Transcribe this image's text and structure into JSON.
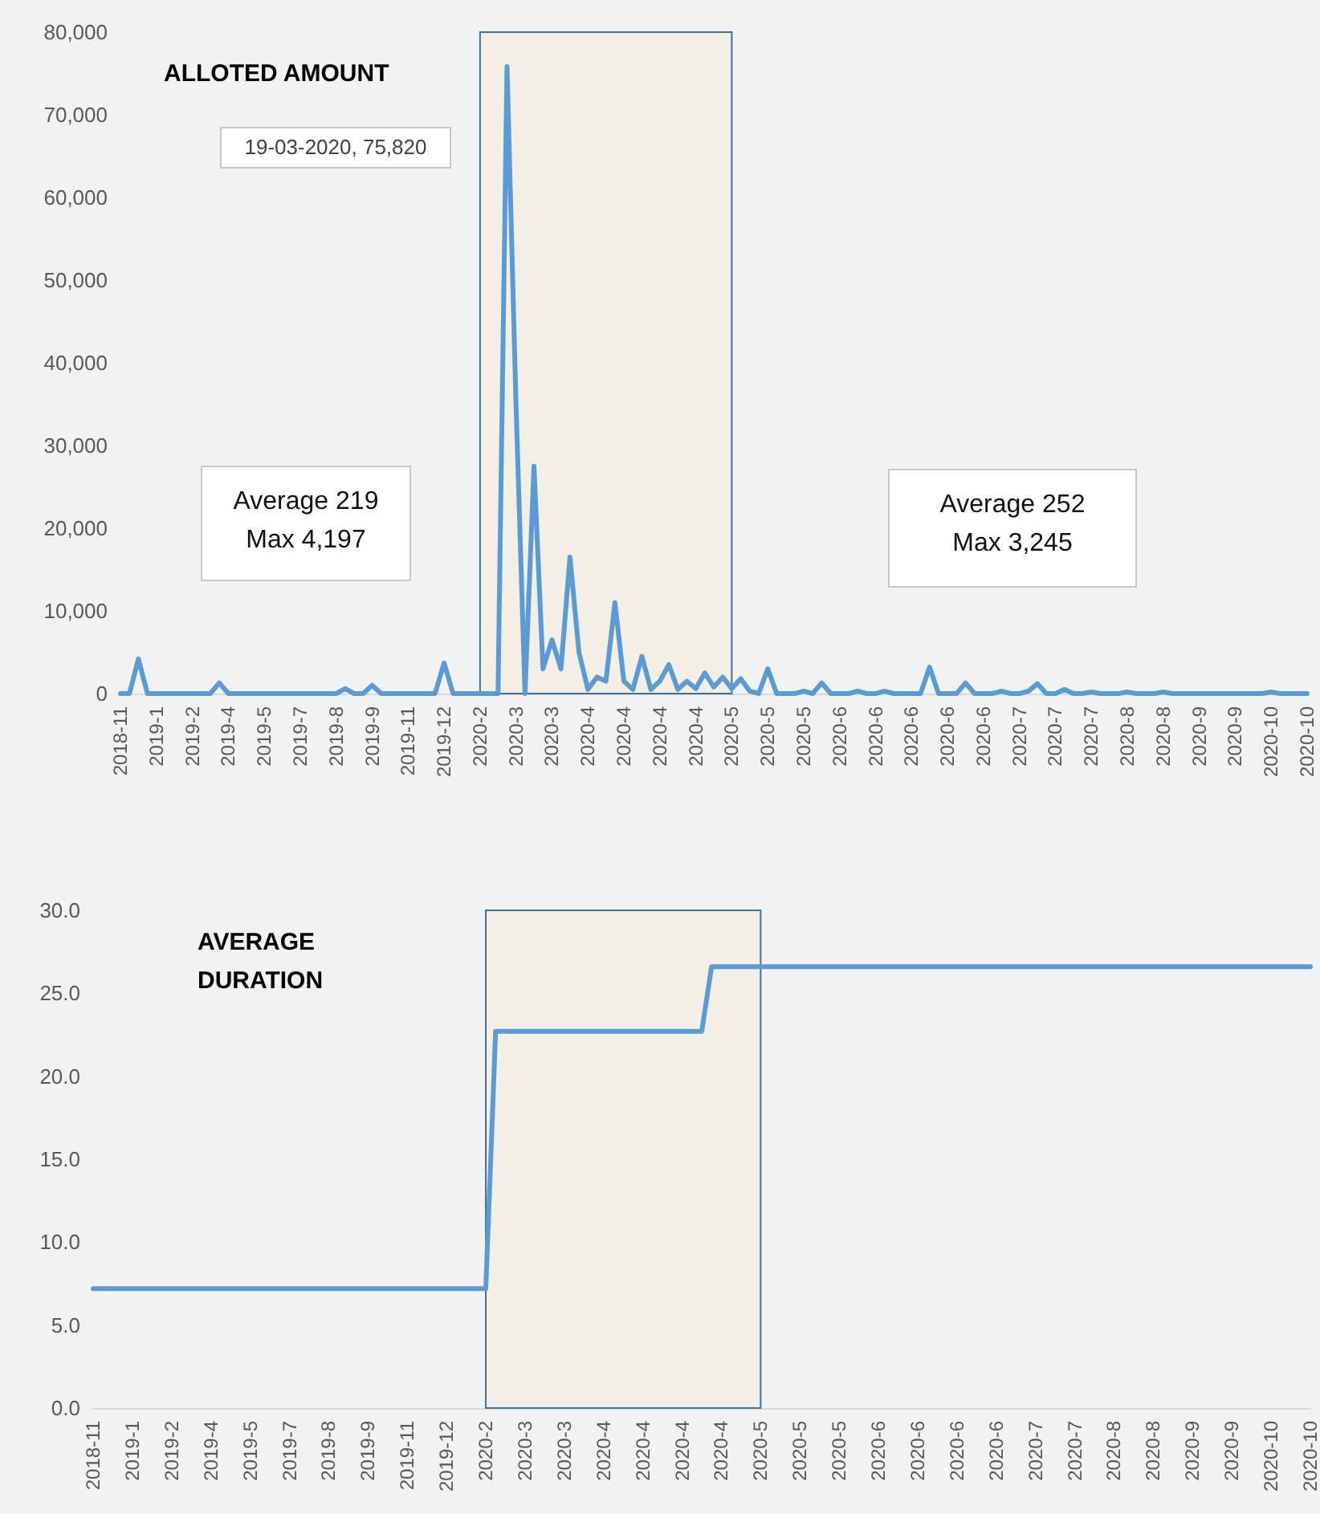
{
  "chart_data": [
    {
      "type": "line",
      "title": "ALLOTED AMOUNT",
      "categories": [
        "2018-11",
        null,
        null,
        null,
        "2019-1",
        null,
        null,
        null,
        "2019-2",
        null,
        null,
        null,
        "2019-4",
        null,
        null,
        null,
        "2019-5",
        null,
        null,
        null,
        "2019-7",
        null,
        null,
        null,
        "2019-8",
        null,
        null,
        null,
        "2019-9",
        null,
        null,
        null,
        "2019-11",
        null,
        null,
        null,
        "2019-12",
        null,
        null,
        null,
        "2020-2",
        null,
        null,
        null,
        "2020-3",
        null,
        null,
        null,
        "2020-3",
        null,
        null,
        null,
        "2020-4",
        null,
        null,
        null,
        "2020-4",
        null,
        null,
        null,
        "2020-4",
        null,
        null,
        null,
        "2020-4",
        null,
        null,
        null,
        "2020-5",
        null,
        null,
        null,
        "2020-5",
        null,
        null,
        null,
        "2020-5",
        null,
        null,
        null,
        "2020-6",
        null,
        null,
        null,
        "2020-6",
        null,
        null,
        null,
        "2020-6",
        null,
        null,
        null,
        "2020-6",
        null,
        null,
        null,
        "2020-6",
        null,
        null,
        null,
        "2020-7",
        null,
        null,
        null,
        "2020-7",
        null,
        null,
        null,
        "2020-7",
        null,
        null,
        null,
        "2020-8",
        null,
        null,
        null,
        "2020-8",
        null,
        null,
        null,
        "2020-9",
        null,
        null,
        null,
        "2020-9",
        null,
        null,
        null,
        "2020-10",
        null,
        null,
        null,
        "2020-10"
      ],
      "series": [
        {
          "color": "#5b9bd5",
          "values": [
            0,
            0,
            4200,
            0,
            0,
            0,
            0,
            0,
            0,
            0,
            0,
            1300,
            0,
            0,
            0,
            0,
            0,
            0,
            0,
            0,
            0,
            0,
            0,
            0,
            0,
            600,
            0,
            0,
            1000,
            0,
            0,
            0,
            0,
            0,
            0,
            0,
            3700,
            0,
            0,
            0,
            0,
            0,
            0,
            75820,
            35000,
            0,
            27500,
            3000,
            6500,
            3000,
            16500,
            5000,
            500,
            2000,
            1500,
            11000,
            1500,
            500,
            4500,
            500,
            1500,
            3500,
            500,
            1500,
            600,
            2500,
            800,
            2000,
            600,
            1800,
            300,
            0,
            3000,
            0,
            0,
            0,
            300,
            0,
            1300,
            0,
            0,
            0,
            300,
            0,
            0,
            300,
            0,
            0,
            0,
            0,
            3200,
            0,
            0,
            0,
            1300,
            0,
            0,
            0,
            300,
            0,
            0,
            300,
            1200,
            0,
            0,
            500,
            0,
            0,
            200,
            0,
            0,
            0,
            200,
            0,
            0,
            0,
            200,
            0,
            0,
            0,
            0,
            0,
            0,
            0,
            0,
            0,
            0,
            0,
            200,
            0,
            0,
            0,
            0
          ]
        }
      ],
      "ylim": [
        0,
        80000
      ],
      "yticks": [
        {
          "value": 0,
          "label": "0"
        },
        {
          "value": 10000,
          "label": "10,000"
        },
        {
          "value": 20000,
          "label": "20,000"
        },
        {
          "value": 30000,
          "label": "30,000"
        },
        {
          "value": 40000,
          "label": "40,000"
        },
        {
          "value": 50000,
          "label": "50,000"
        },
        {
          "value": 60000,
          "label": "60,000"
        },
        {
          "value": 70000,
          "label": "70,000"
        },
        {
          "value": 80000,
          "label": "80,000"
        }
      ],
      "bands": [
        {
          "axis": "x",
          "from": "2020-2",
          "to": "2020-5",
          "color": "#f3efe4"
        }
      ],
      "annotations": [
        "19-03-2020, 75,820",
        "Average 219\nMax 4,197",
        "Average 252\nMax 3,245"
      ],
      "grid": false,
      "marker": "none",
      "line_style": "solid"
    },
    {
      "type": "line",
      "title": "AVERAGE DURATION",
      "categories": [
        "2018-11",
        null,
        null,
        null,
        "2019-1",
        null,
        null,
        null,
        "2019-2",
        null,
        null,
        null,
        "2019-4",
        null,
        null,
        null,
        "2019-5",
        null,
        null,
        null,
        "2019-7",
        null,
        null,
        null,
        "2019-8",
        null,
        null,
        null,
        "2019-9",
        null,
        null,
        null,
        "2019-11",
        null,
        null,
        null,
        "2019-12",
        null,
        null,
        null,
        "2020-2",
        null,
        null,
        null,
        "2020-3",
        null,
        null,
        null,
        "2020-3",
        null,
        null,
        null,
        "2020-4",
        null,
        null,
        null,
        "2020-4",
        null,
        null,
        null,
        "2020-4",
        null,
        null,
        null,
        "2020-4",
        null,
        null,
        null,
        "2020-5",
        null,
        null,
        null,
        "2020-5",
        null,
        null,
        null,
        "2020-5",
        null,
        null,
        null,
        "2020-6",
        null,
        null,
        null,
        "2020-6",
        null,
        null,
        null,
        "2020-6",
        null,
        null,
        null,
        "2020-6",
        null,
        null,
        null,
        "2020-7",
        null,
        null,
        null,
        "2020-7",
        null,
        null,
        null,
        "2020-8",
        null,
        null,
        null,
        "2020-8",
        null,
        null,
        null,
        "2020-9",
        null,
        null,
        null,
        "2020-9",
        null,
        null,
        null,
        "2020-10",
        null,
        null,
        null,
        "2020-10"
      ],
      "series": [
        {
          "color": "#5b9bd5",
          "values": [
            7.2,
            7.2,
            7.2,
            7.2,
            7.2,
            7.2,
            7.2,
            7.2,
            7.2,
            7.2,
            7.2,
            7.2,
            7.2,
            7.2,
            7.2,
            7.2,
            7.2,
            7.2,
            7.2,
            7.2,
            7.2,
            7.2,
            7.2,
            7.2,
            7.2,
            7.2,
            7.2,
            7.2,
            7.2,
            7.2,
            7.2,
            7.2,
            7.2,
            7.2,
            7.2,
            7.2,
            7.2,
            7.2,
            7.2,
            7.2,
            7.2,
            22.7,
            22.7,
            22.7,
            22.7,
            22.7,
            22.7,
            22.7,
            22.7,
            22.7,
            22.7,
            22.7,
            22.7,
            22.7,
            22.7,
            22.7,
            22.7,
            22.7,
            22.7,
            22.7,
            22.7,
            22.7,
            22.7,
            26.6,
            26.6,
            26.6,
            26.6,
            26.6,
            26.6,
            26.6,
            26.6,
            26.6,
            26.6,
            26.6,
            26.6,
            26.6,
            26.6,
            26.6,
            26.6,
            26.6,
            26.6,
            26.6,
            26.6,
            26.6,
            26.6,
            26.6,
            26.6,
            26.6,
            26.6,
            26.6,
            26.6,
            26.6,
            26.6,
            26.6,
            26.6,
            26.6,
            26.6,
            26.6,
            26.6,
            26.6,
            26.6,
            26.6,
            26.6,
            26.6,
            26.6,
            26.6,
            26.6,
            26.6,
            26.6,
            26.6,
            26.6,
            26.6,
            26.6,
            26.6,
            26.6,
            26.6,
            26.6,
            26.6,
            26.6,
            26.6,
            26.6,
            26.6,
            26.6,
            26.6,
            26.6
          ]
        }
      ],
      "ylim": [
        0,
        30
      ],
      "yticks": [
        {
          "value": 0,
          "label": "0.0"
        },
        {
          "value": 5,
          "label": "5.0"
        },
        {
          "value": 10,
          "label": "10.0"
        },
        {
          "value": 15,
          "label": "15.0"
        },
        {
          "value": 20,
          "label": "20.0"
        },
        {
          "value": 25,
          "label": "25.0"
        },
        {
          "value": 30,
          "label": "30.0"
        }
      ],
      "bands": [
        {
          "axis": "x",
          "from": "2020-2",
          "to": "2020-5",
          "color": "#f3efe4"
        }
      ],
      "grid": false,
      "marker": "none",
      "line_style": "solid"
    }
  ]
}
